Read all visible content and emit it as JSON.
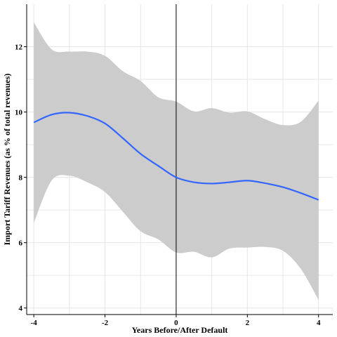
{
  "chart_data": {
    "type": "line",
    "title": "",
    "xlabel": "Years Before/After Default",
    "ylabel": "Import Tariff Revenues (as % of total revenues)",
    "xlim": [
      -4.2,
      4.4
    ],
    "ylim": [
      3.8,
      13.3
    ],
    "x_ticks": [
      -4,
      -2,
      0,
      2,
      4
    ],
    "x_tick_labels": [
      "-4",
      "-2",
      "0",
      "2",
      "4"
    ],
    "y_ticks": [
      4,
      6,
      8,
      10,
      12
    ],
    "y_tick_labels": [
      "4",
      "6",
      "8",
      "10",
      "12"
    ],
    "grid": true,
    "vline_x": 0,
    "colors": {
      "line": "#3366ff",
      "band": "#cccccc",
      "vline": "#000000"
    },
    "series": [
      {
        "x": [
          -4,
          -3.5,
          -3,
          -2.5,
          -2,
          -1.5,
          -1,
          -0.5,
          0,
          0.5,
          1,
          1.5,
          2,
          2.5,
          3,
          3.5,
          4
        ],
        "y": [
          9.68,
          9.92,
          9.98,
          9.88,
          9.65,
          9.2,
          8.72,
          8.35,
          8.0,
          7.85,
          7.81,
          7.85,
          7.9,
          7.82,
          7.7,
          7.52,
          7.31
        ],
        "lower": [
          6.6,
          7.9,
          8.05,
          7.85,
          7.55,
          6.95,
          6.35,
          6.1,
          5.7,
          5.72,
          5.55,
          5.82,
          5.85,
          5.87,
          5.75,
          5.2,
          4.25
        ],
        "upper": [
          12.75,
          11.92,
          11.85,
          11.85,
          11.72,
          11.25,
          10.95,
          10.45,
          10.32,
          10.02,
          10.12,
          9.98,
          10.02,
          9.78,
          9.6,
          9.7,
          10.35
        ]
      }
    ]
  }
}
